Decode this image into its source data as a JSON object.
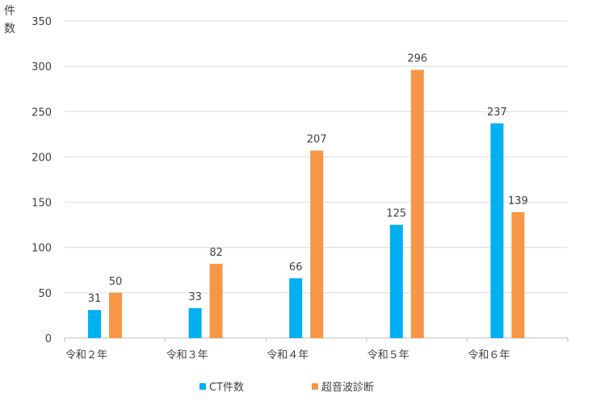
{
  "chart_data": {
    "type": "bar",
    "ylabel": "件数",
    "ylim": [
      0,
      350
    ],
    "yticks": [
      0,
      50,
      100,
      150,
      200,
      250,
      300,
      350
    ],
    "grid": true,
    "legend_position": "bottom",
    "categories": [
      "令和２年",
      "令和３年",
      "令和４年",
      "令和５年",
      "令和６年"
    ],
    "series": [
      {
        "name": "CT件数",
        "color": "#00b0f0",
        "values": [
          31,
          33,
          66,
          125,
          237
        ]
      },
      {
        "name": "超音波診断",
        "color": "#f79646",
        "values": [
          50,
          82,
          207,
          296,
          139
        ]
      }
    ]
  }
}
